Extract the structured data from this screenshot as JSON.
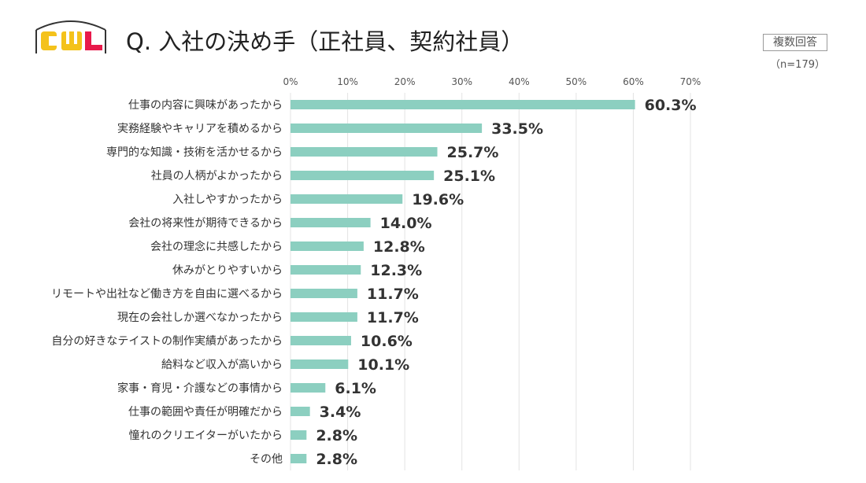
{
  "header": {
    "logo_text": "CWL",
    "title": "Q. 入社の決め手（正社員、契約社員）",
    "badge": "複数回答",
    "sample_size": "（n=179）"
  },
  "colors": {
    "bar": "#8ccfc0",
    "logo_yellow": "#f4c21b",
    "logo_red": "#e8194b",
    "logo_dark": "#333333"
  },
  "chart_data": {
    "type": "bar",
    "orientation": "horizontal",
    "title": "Q. 入社の決め手（正社員、契約社員）",
    "xlim": [
      0,
      70
    ],
    "x_ticks": [
      "0%",
      "10%",
      "20%",
      "30%",
      "40%",
      "50%",
      "60%",
      "70%"
    ],
    "categories": [
      "仕事の内容に興味があったから",
      "実務経験やキャリアを積めるから",
      "専門的な知識・技術を活かせるから",
      "社員の人柄がよかったから",
      "入社しやすかったから",
      "会社の将来性が期待できるから",
      "会社の理念に共感したから",
      "休みがとりやすいから",
      "リモートや出社など働き方を自由に選べるから",
      "現在の会社しか選べなかったから",
      "自分の好きなテイストの制作実績があったから",
      "給料など収入が高いから",
      "家事・育児・介護などの事情から",
      "仕事の範囲や責任が明確だから",
      "憧れのクリエイターがいたから",
      "その他"
    ],
    "values": [
      60.3,
      33.5,
      25.7,
      25.1,
      19.6,
      14.0,
      12.8,
      12.3,
      11.7,
      11.7,
      10.6,
      10.1,
      6.1,
      3.4,
      2.8,
      2.8
    ],
    "labels": [
      "60.3%",
      "33.5%",
      "25.7%",
      "25.1%",
      "19.6%",
      "14.0%",
      "12.8%",
      "12.3%",
      "11.7%",
      "11.7%",
      "10.6%",
      "10.1%",
      "6.1%",
      "3.4%",
      "2.8%",
      "2.8%"
    ],
    "grid": true
  }
}
